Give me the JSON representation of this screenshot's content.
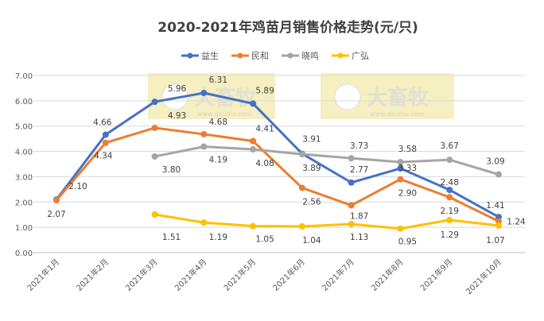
{
  "chart_data": {
    "type": "line",
    "title": "2020-2021年鸡苗月销售价格走势(元/只)",
    "categories": [
      "2021年1月",
      "2021年2月",
      "2021年3月",
      "2021年4月",
      "2021年5月",
      "2021年6月",
      "2021年7月",
      "2021年8月",
      "2021年9月",
      "2021年10月"
    ],
    "ylim": [
      0,
      7
    ],
    "yticks": [
      "0.00",
      "1.00",
      "2.00",
      "3.00",
      "4.00",
      "5.00",
      "6.00",
      "7.00"
    ],
    "grid": true,
    "legend_position": "top",
    "series": [
      {
        "name": "益生",
        "color": "#4472C4",
        "values": [
          2.1,
          4.66,
          5.96,
          6.31,
          5.89,
          3.91,
          2.77,
          3.33,
          2.48,
          1.41
        ]
      },
      {
        "name": "民和",
        "color": "#ED7D31",
        "values": [
          2.07,
          4.34,
          4.93,
          4.68,
          4.41,
          2.56,
          1.87,
          2.9,
          2.19,
          1.24
        ]
      },
      {
        "name": "晓鸣",
        "color": "#A5A5A5",
        "values": [
          null,
          null,
          3.8,
          4.19,
          4.08,
          3.89,
          3.73,
          3.58,
          3.67,
          3.09
        ]
      },
      {
        "name": "广弘",
        "color": "#FFC000",
        "values": [
          null,
          null,
          1.51,
          1.19,
          1.05,
          1.04,
          1.13,
          0.95,
          1.29,
          1.07
        ]
      }
    ]
  },
  "watermark": {
    "text": "大畜牧",
    "url_text": "www.dxumu.com"
  }
}
